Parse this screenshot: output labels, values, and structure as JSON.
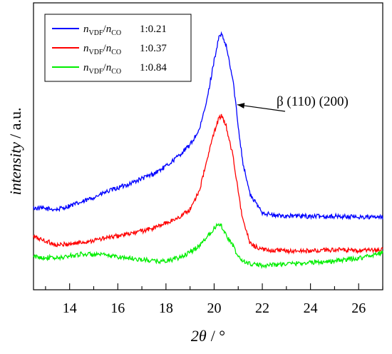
{
  "chart_data": {
    "type": "line",
    "title": "",
    "xlabel": {
      "symbol": "2θ",
      "unit": "/ °"
    },
    "ylabel": {
      "italic": "intensity",
      "unit": "/ a.u."
    },
    "xlim": [
      12.5,
      27.0
    ],
    "ylim": [
      0,
      100
    ],
    "xticks": [
      "14",
      "16",
      "18",
      "20",
      "22",
      "24",
      "26"
    ],
    "grid": false,
    "legend_position": "top-left",
    "annotation": {
      "text": "β (110) (200)",
      "points_to_x": 20.9,
      "points_to_series": "1:0.21"
    },
    "series": [
      {
        "name": "1:0.21",
        "legend_var": {
          "n1": "n",
          "sub1": "VDF",
          "n2": "n",
          "sub2": "CO",
          "ratio": "1:0.21"
        },
        "color": "#0000ff",
        "x": [
          12.5,
          13.5,
          14.5,
          15.5,
          16.5,
          17.5,
          18.0,
          18.5,
          19.0,
          19.4,
          19.7,
          20.0,
          20.2,
          20.3,
          20.5,
          20.8,
          21.0,
          21.2,
          21.5,
          22.0,
          22.5,
          23.0,
          24.0,
          25.0,
          26.0,
          27.0
        ],
        "y": [
          28.5,
          28.0,
          30.5,
          34.0,
          37.0,
          40.5,
          43.0,
          46.5,
          50.5,
          56.0,
          66.0,
          80.0,
          88.0,
          89.0,
          85.0,
          72.0,
          57.0,
          44.0,
          33.0,
          27.0,
          25.8,
          25.8,
          25.6,
          25.6,
          25.4,
          25.2
        ]
      },
      {
        "name": "1:0.37",
        "legend_var": {
          "n1": "n",
          "sub1": "VDF",
          "n2": "n",
          "sub2": "CO",
          "ratio": "1:0.37"
        },
        "color": "#ff0000",
        "x": [
          12.5,
          13.5,
          14.5,
          15.5,
          16.5,
          17.5,
          18.5,
          19.0,
          19.4,
          19.7,
          20.0,
          20.2,
          20.3,
          20.5,
          20.8,
          21.0,
          21.2,
          21.5,
          22.0,
          23.0,
          24.0,
          25.0,
          26.0,
          27.0
        ],
        "y": [
          18.5,
          15.5,
          16.5,
          18.0,
          19.5,
          21.5,
          25.0,
          28.0,
          35.0,
          45.0,
          55.0,
          60.0,
          60.5,
          57.0,
          46.0,
          34.0,
          24.0,
          16.0,
          14.0,
          13.5,
          13.5,
          14.0,
          13.5,
          14.0
        ]
      },
      {
        "name": "1:0.84",
        "legend_var": {
          "n1": "n",
          "sub1": "VDF",
          "n2": "n",
          "sub2": "CO",
          "ratio": "1:0.84"
        },
        "color": "#00ee00",
        "x": [
          12.5,
          13.5,
          14.5,
          15.5,
          16.5,
          17.5,
          18.0,
          18.5,
          19.0,
          19.4,
          19.7,
          20.0,
          20.2,
          20.3,
          20.5,
          20.8,
          21.0,
          21.2,
          21.5,
          22.0,
          23.0,
          24.0,
          25.0,
          26.0,
          27.0
        ],
        "y": [
          11.5,
          11.0,
          12.5,
          12.0,
          11.0,
          10.0,
          10.0,
          11.0,
          13.0,
          15.5,
          18.5,
          21.5,
          23.0,
          22.5,
          19.0,
          15.0,
          11.5,
          10.0,
          9.0,
          8.5,
          9.0,
          9.5,
          10.0,
          11.0,
          13.0
        ]
      }
    ]
  }
}
